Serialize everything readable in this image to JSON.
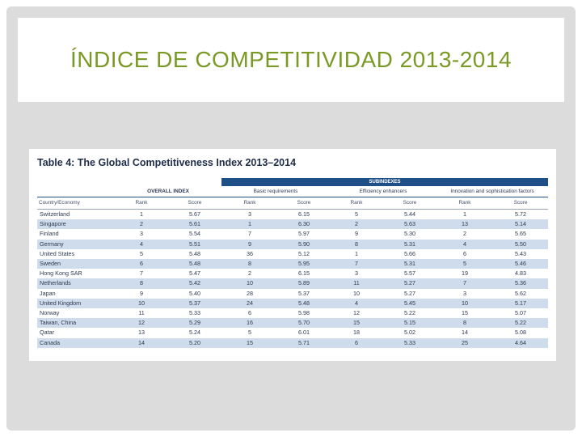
{
  "slide": {
    "title": "ÍNDICE DE COMPETITIVIDAD 2013-2014"
  },
  "table": {
    "caption": "Table 4: The Global Competitiveness Index 2013–2014",
    "subindexes_label": "SUBINDEXES",
    "groups": {
      "overall": "OVERALL INDEX",
      "basic": "Basic requirements",
      "efficiency": "Efficiency enhancers",
      "innovation": "Innovation and sophistication factors"
    },
    "columns": {
      "economy": "Country/Economy",
      "rank": "Rank",
      "score": "Score"
    },
    "rows": [
      {
        "country": "Switzerland",
        "o_rank": "1",
        "o_score": "5.67",
        "b_rank": "3",
        "b_score": "6.15",
        "e_rank": "5",
        "e_score": "5.44",
        "i_rank": "1",
        "i_score": "5.72"
      },
      {
        "country": "Singapore",
        "o_rank": "2",
        "o_score": "5.61",
        "b_rank": "1",
        "b_score": "6.30",
        "e_rank": "2",
        "e_score": "5.63",
        "i_rank": "13",
        "i_score": "5.14"
      },
      {
        "country": "Finland",
        "o_rank": "3",
        "o_score": "5.54",
        "b_rank": "7",
        "b_score": "5.97",
        "e_rank": "9",
        "e_score": "5.30",
        "i_rank": "2",
        "i_score": "5.65"
      },
      {
        "country": "Germany",
        "o_rank": "4",
        "o_score": "5.51",
        "b_rank": "9",
        "b_score": "5.90",
        "e_rank": "8",
        "e_score": "5.31",
        "i_rank": "4",
        "i_score": "5.50"
      },
      {
        "country": "United States",
        "o_rank": "5",
        "o_score": "5.48",
        "b_rank": "36",
        "b_score": "5.12",
        "e_rank": "1",
        "e_score": "5.66",
        "i_rank": "6",
        "i_score": "5.43"
      },
      {
        "country": "Sweden",
        "o_rank": "6",
        "o_score": "5.48",
        "b_rank": "8",
        "b_score": "5.95",
        "e_rank": "7",
        "e_score": "5.31",
        "i_rank": "5",
        "i_score": "5.46"
      },
      {
        "country": "Hong Kong SAR",
        "o_rank": "7",
        "o_score": "5.47",
        "b_rank": "2",
        "b_score": "6.15",
        "e_rank": "3",
        "e_score": "5.57",
        "i_rank": "19",
        "i_score": "4.83"
      },
      {
        "country": "Netherlands",
        "o_rank": "8",
        "o_score": "5.42",
        "b_rank": "10",
        "b_score": "5.89",
        "e_rank": "11",
        "e_score": "5.27",
        "i_rank": "7",
        "i_score": "5.36"
      },
      {
        "country": "Japan",
        "o_rank": "9",
        "o_score": "5.40",
        "b_rank": "28",
        "b_score": "5.37",
        "e_rank": "10",
        "e_score": "5.27",
        "i_rank": "3",
        "i_score": "5.62"
      },
      {
        "country": "United Kingdom",
        "o_rank": "10",
        "o_score": "5.37",
        "b_rank": "24",
        "b_score": "5.48",
        "e_rank": "4",
        "e_score": "5.45",
        "i_rank": "10",
        "i_score": "5.17"
      },
      {
        "country": "Norway",
        "o_rank": "11",
        "o_score": "5.33",
        "b_rank": "6",
        "b_score": "5.98",
        "e_rank": "12",
        "e_score": "5.22",
        "i_rank": "15",
        "i_score": "5.07"
      },
      {
        "country": "Taiwan, China",
        "o_rank": "12",
        "o_score": "5.29",
        "b_rank": "16",
        "b_score": "5.70",
        "e_rank": "15",
        "e_score": "5.15",
        "i_rank": "8",
        "i_score": "5.22"
      },
      {
        "country": "Qatar",
        "o_rank": "13",
        "o_score": "5.24",
        "b_rank": "5",
        "b_score": "6.01",
        "e_rank": "18",
        "e_score": "5.02",
        "i_rank": "14",
        "i_score": "5.08"
      },
      {
        "country": "Canada",
        "o_rank": "14",
        "o_score": "5.20",
        "b_rank": "15",
        "b_score": "5.71",
        "e_rank": "6",
        "e_score": "5.33",
        "i_rank": "25",
        "i_score": "4.64"
      }
    ]
  },
  "colors": {
    "title": "#7a9a25",
    "header_bar": "#1e4f86",
    "row_shade": "#cfdcec"
  }
}
